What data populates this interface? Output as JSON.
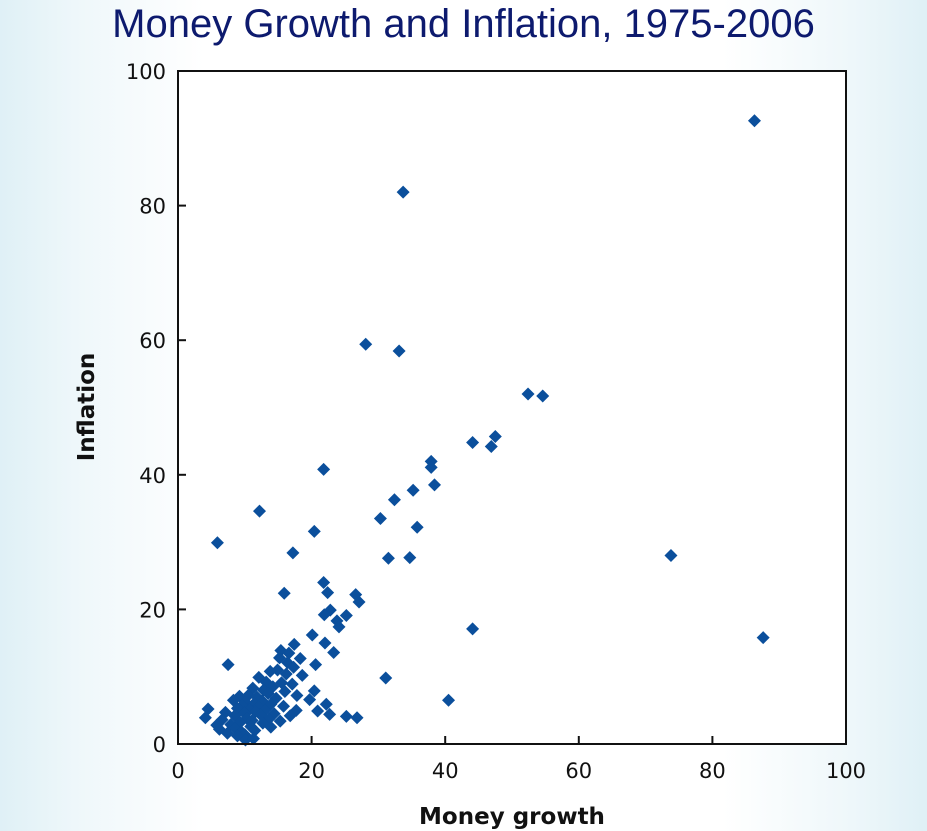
{
  "chart_data": {
    "type": "scatter",
    "title": "Money Growth and Inflation, 1975-2006",
    "xlabel": "Money growth",
    "ylabel": "Inflation",
    "xlim": [
      0,
      100
    ],
    "ylim": [
      0,
      100
    ],
    "xticks": [
      "0",
      "20",
      "40",
      "60",
      "80",
      "100"
    ],
    "yticks": [
      "0",
      "20",
      "40",
      "60",
      "80",
      "100"
    ],
    "grid": false,
    "marker": "diamond",
    "color": "#0b4f9c",
    "points": [
      [
        86.3,
        92.6
      ],
      [
        33.7,
        82.0
      ],
      [
        28.1,
        59.4
      ],
      [
        33.1,
        58.4
      ],
      [
        52.4,
        52.0
      ],
      [
        54.6,
        51.7
      ],
      [
        47.5,
        45.7
      ],
      [
        46.9,
        44.2
      ],
      [
        44.1,
        44.8
      ],
      [
        37.9,
        42.0
      ],
      [
        37.9,
        41.1
      ],
      [
        38.4,
        38.5
      ],
      [
        35.2,
        37.7
      ],
      [
        32.4,
        36.3
      ],
      [
        30.3,
        33.5
      ],
      [
        35.8,
        32.2
      ],
      [
        20.4,
        31.6
      ],
      [
        21.8,
        40.8
      ],
      [
        12.2,
        34.6
      ],
      [
        5.9,
        29.9
      ],
      [
        17.2,
        28.4
      ],
      [
        31.5,
        27.6
      ],
      [
        34.7,
        27.7
      ],
      [
        73.8,
        28.0
      ],
      [
        87.6,
        15.8
      ],
      [
        44.1,
        17.1
      ],
      [
        40.5,
        6.5
      ],
      [
        31.1,
        9.8
      ],
      [
        15.9,
        22.4
      ],
      [
        21.8,
        24.0
      ],
      [
        22.4,
        22.5
      ],
      [
        26.6,
        22.2
      ],
      [
        27.1,
        21.1
      ],
      [
        22.8,
        19.9
      ],
      [
        21.9,
        19.2
      ],
      [
        23.8,
        18.3
      ],
      [
        25.2,
        19.1
      ],
      [
        24.1,
        17.4
      ],
      [
        20.1,
        16.2
      ],
      [
        22.0,
        15.0
      ],
      [
        17.4,
        14.8
      ],
      [
        15.4,
        13.9
      ],
      [
        16.6,
        13.5
      ],
      [
        23.3,
        13.6
      ],
      [
        18.3,
        12.7
      ],
      [
        15.2,
        12.8
      ],
      [
        16.4,
        12.1
      ],
      [
        20.6,
        11.8
      ],
      [
        17.3,
        11.4
      ],
      [
        7.5,
        11.8
      ],
      [
        14.9,
        11.0
      ],
      [
        13.8,
        10.8
      ],
      [
        16.2,
        10.4
      ],
      [
        18.6,
        10.2
      ],
      [
        12.1,
        9.9
      ],
      [
        13.2,
        9.2
      ],
      [
        15.5,
        9.1
      ],
      [
        17.1,
        8.9
      ],
      [
        14.2,
        8.5
      ],
      [
        11.2,
        8.3
      ],
      [
        12.8,
        8.0
      ],
      [
        16.0,
        7.8
      ],
      [
        20.4,
        7.9
      ],
      [
        13.5,
        7.5
      ],
      [
        9.2,
        7.1
      ],
      [
        10.5,
        7.2
      ],
      [
        11.8,
        7.0
      ],
      [
        17.8,
        7.2
      ],
      [
        14.7,
        6.8
      ],
      [
        8.3,
        6.5
      ],
      [
        12.6,
        6.4
      ],
      [
        10.1,
        6.2
      ],
      [
        19.7,
        6.6
      ],
      [
        11.4,
        6.0
      ],
      [
        13.9,
        5.9
      ],
      [
        9.6,
        5.7
      ],
      [
        15.8,
        5.6
      ],
      [
        12.0,
        5.5
      ],
      [
        8.9,
        5.3
      ],
      [
        22.2,
        5.9
      ],
      [
        4.5,
        5.2
      ],
      [
        10.7,
        5.1
      ],
      [
        13.0,
        5.0
      ],
      [
        17.7,
        5.0
      ],
      [
        11.6,
        4.8
      ],
      [
        7.1,
        4.7
      ],
      [
        9.9,
        4.6
      ],
      [
        14.4,
        4.5
      ],
      [
        20.9,
        4.9
      ],
      [
        12.4,
        4.3
      ],
      [
        8.5,
        4.2
      ],
      [
        16.8,
        4.2
      ],
      [
        22.7,
        4.4
      ],
      [
        25.2,
        4.1
      ],
      [
        26.8,
        3.9
      ],
      [
        4.1,
        3.9
      ],
      [
        10.3,
        3.8
      ],
      [
        13.6,
        3.7
      ],
      [
        6.6,
        3.6
      ],
      [
        11.1,
        3.5
      ],
      [
        15.3,
        3.4
      ],
      [
        9.3,
        3.2
      ],
      [
        12.7,
        3.1
      ],
      [
        7.9,
        2.9
      ],
      [
        5.8,
        2.8
      ],
      [
        10.9,
        2.6
      ],
      [
        13.9,
        2.5
      ],
      [
        8.6,
        2.3
      ],
      [
        6.2,
        2.2
      ],
      [
        11.5,
        2.0
      ],
      [
        9.5,
        1.8
      ],
      [
        7.4,
        1.6
      ],
      [
        10.0,
        1.4
      ],
      [
        8.9,
        1.2
      ],
      [
        10.1,
        0.6
      ],
      [
        11.3,
        0.8
      ]
    ]
  }
}
